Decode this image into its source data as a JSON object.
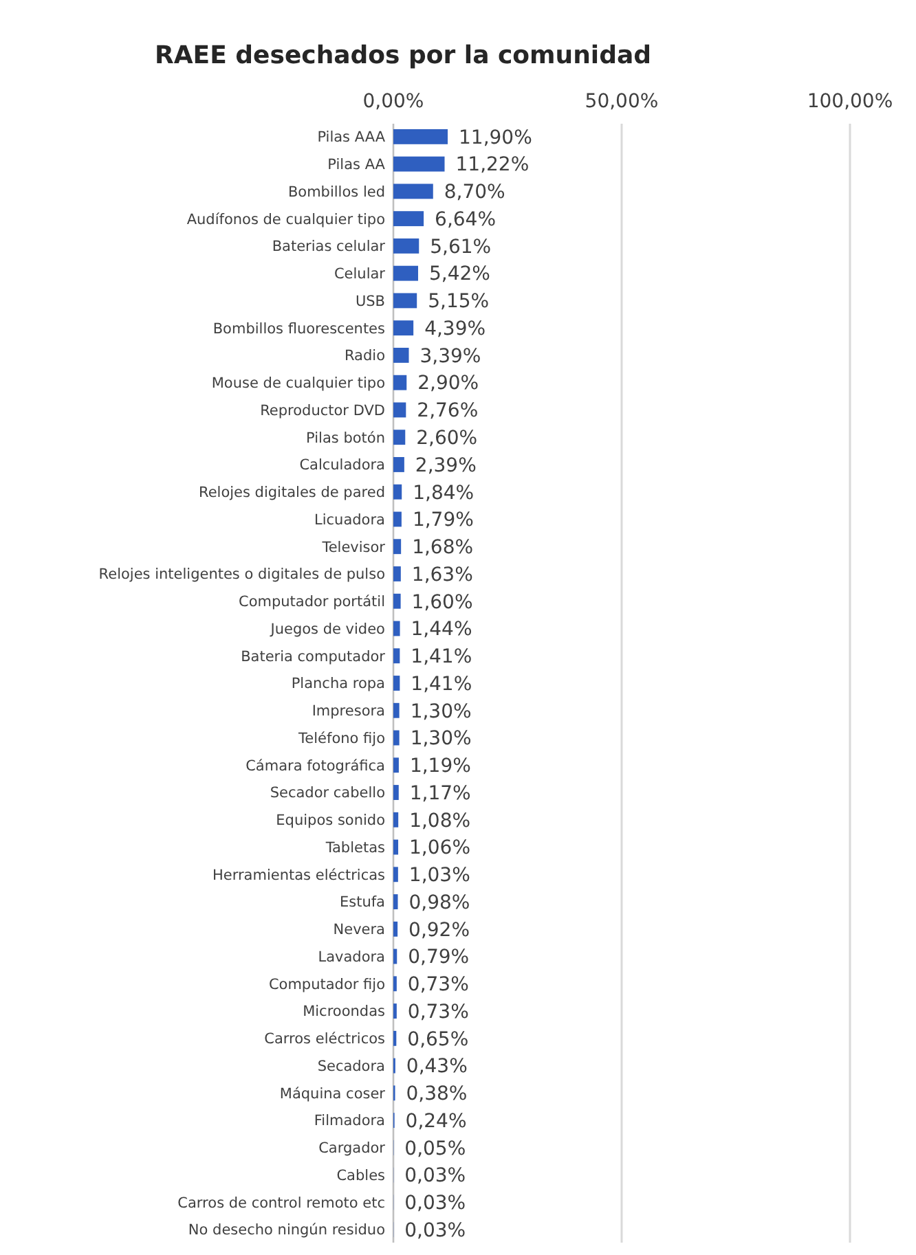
{
  "chart_data": {
    "type": "bar",
    "orientation": "horizontal",
    "title": "RAEE desechados por la comunidad",
    "categories": [
      "Pilas AAA",
      "Pilas AA",
      "Bombillos led",
      "Audífonos de cualquier tipo",
      "Baterias celular",
      "Celular",
      "USB",
      "Bombillos fluorescentes",
      "Radio",
      "Mouse de cualquier tipo",
      "Reproductor DVD",
      "Pilas botón",
      "Calculadora",
      "Relojes digitales de pared",
      "Licuadora",
      "Televisor",
      "Relojes inteligentes o digitales de pulso",
      "Computador portátil",
      "Juegos de video",
      "Bateria computador",
      "Plancha ropa",
      "Impresora",
      "Teléfono fijo",
      "Cámara fotográfica",
      "Secador cabello",
      "Equipos sonido",
      "Tabletas",
      "Herramientas eléctricas",
      "Estufa",
      "Nevera",
      "Lavadora",
      "Computador fijo",
      "Microondas",
      "Carros eléctricos",
      "Secadora",
      "Máquina coser",
      "Filmadora",
      "Cargador",
      "Cables",
      "Carros de control remoto etc",
      "No desecho ningún residuo"
    ],
    "values": [
      11.9,
      11.22,
      8.7,
      6.64,
      5.61,
      5.42,
      5.15,
      4.39,
      3.39,
      2.9,
      2.76,
      2.6,
      2.39,
      1.84,
      1.79,
      1.68,
      1.63,
      1.6,
      1.44,
      1.41,
      1.41,
      1.3,
      1.3,
      1.19,
      1.17,
      1.08,
      1.06,
      1.03,
      0.98,
      0.92,
      0.79,
      0.73,
      0.73,
      0.65,
      0.43,
      0.38,
      0.24,
      0.05,
      0.03,
      0.03,
      0.03
    ],
    "value_labels": [
      "11,90%",
      "11,22%",
      "8,70%",
      "6,64%",
      "5,61%",
      "5,42%",
      "5,15%",
      "4,39%",
      "3,39%",
      "2,90%",
      "2,76%",
      "2,60%",
      "2,39%",
      "1,84%",
      "1,79%",
      "1,68%",
      "1,63%",
      "1,60%",
      "1,44%",
      "1,41%",
      "1,41%",
      "1,30%",
      "1,30%",
      "1,19%",
      "1,17%",
      "1,08%",
      "1,06%",
      "1,03%",
      "0,98%",
      "0,92%",
      "0,79%",
      "0,73%",
      "0,73%",
      "0,65%",
      "0,43%",
      "0,38%",
      "0,24%",
      "0,05%",
      "0,03%",
      "0,03%",
      "0,03%"
    ],
    "color": "#2f5fc0",
    "xlim": [
      0,
      100
    ],
    "xticks": [
      {
        "value": 0,
        "label": "0,00%"
      },
      {
        "value": 50,
        "label": "50,00%"
      },
      {
        "value": 100,
        "label": "100,00%"
      }
    ],
    "grid": "x"
  }
}
